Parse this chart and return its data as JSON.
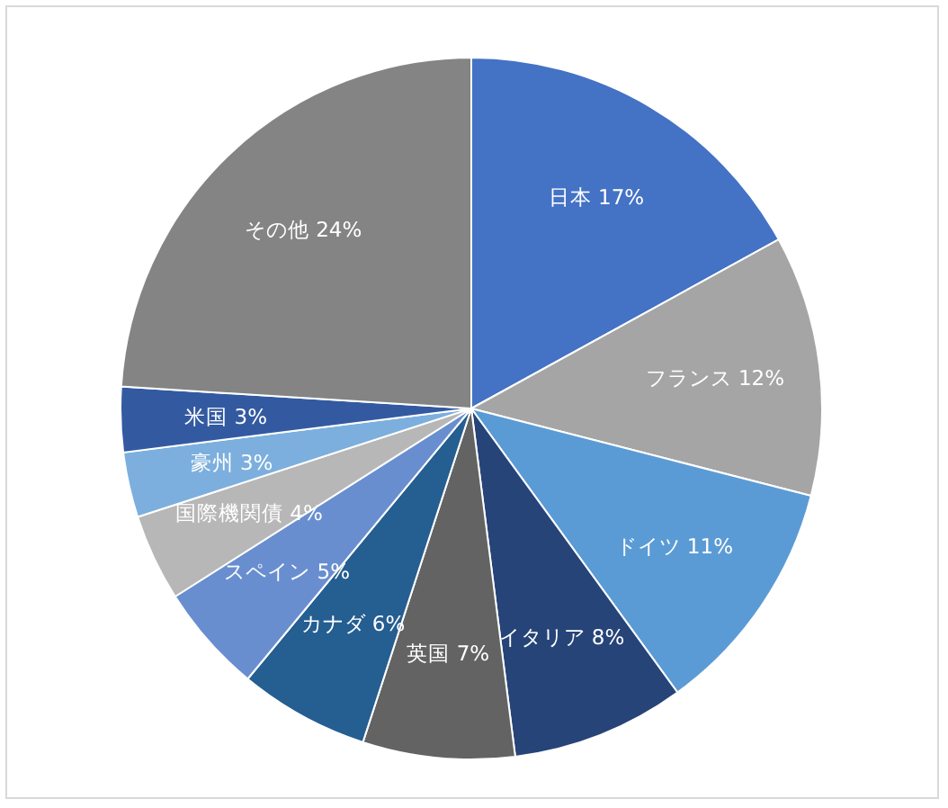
{
  "chart_data": {
    "type": "pie",
    "categories": [
      "日本",
      "フランス",
      "ドイツ",
      "イタリア",
      "英国",
      "カナダ",
      "スペイン",
      "国際機関債",
      "豪州",
      "米国",
      "その他"
    ],
    "values": [
      17,
      12,
      11,
      8,
      7,
      6,
      5,
      4,
      3,
      3,
      24
    ],
    "value_labels": [
      "17%",
      "12%",
      "11%",
      "8%",
      "7%",
      "6%",
      "5%",
      "4%",
      "3%",
      "3%",
      "24%"
    ],
    "colors": [
      "#4472c4",
      "#a5a5a5",
      "#5b9bd5",
      "#264478",
      "#636363",
      "#255e91",
      "#698ed0",
      "#b7b7b7",
      "#7cafdd",
      "#335aa1",
      "#848484"
    ]
  }
}
